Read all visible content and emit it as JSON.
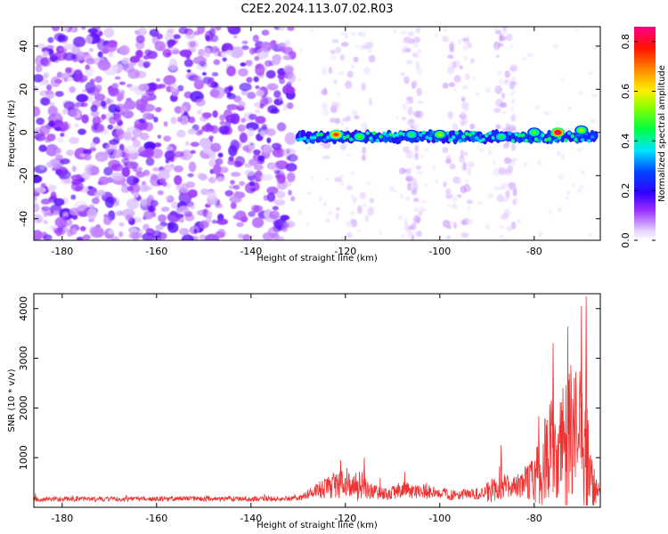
{
  "title": "C2E2.2024.113.07.02.R03",
  "chart_data": [
    {
      "type": "heatmap",
      "xlabel": "Height of straight line (km)",
      "ylabel": "Frequency (Hz)",
      "xlim": [
        -186,
        -66
      ],
      "ylim": [
        -50,
        49
      ],
      "x_ticks": [
        -180,
        -160,
        -140,
        -120,
        -100,
        -80
      ],
      "x_tick_labels": [
        "-180",
        "-160",
        "-140",
        "-120",
        "-100",
        "-80"
      ],
      "y_ticks": [
        -40,
        -20,
        0,
        20,
        40
      ],
      "y_tick_labels": [
        "-40",
        "-20",
        "0",
        "20",
        "40"
      ],
      "colorbar": {
        "label": "Normalized spectral amplitude",
        "range": [
          0,
          0.86
        ],
        "ticks": [
          0,
          0.2,
          0.4,
          0.6,
          0.8
        ],
        "tick_labels": [
          "0.0",
          "0.2",
          "0.4",
          "0.6",
          "0.8"
        ]
      },
      "features": {
        "noise_region_x": [
          -186,
          -131
        ],
        "sparse_noise_columns_x": [
          [
            -125,
            -114
          ],
          [
            -108,
            -104
          ],
          [
            -99,
            -93
          ],
          [
            -88,
            -84
          ]
        ],
        "signal_band": {
          "x": [
            -130,
            -67
          ],
          "freq_center": -2,
          "freq_half_width": 4
        },
        "signal_peaks": [
          {
            "x": -122,
            "freq": -1,
            "amplitude": 0.75
          },
          {
            "x": -117,
            "freq": -2,
            "amplitude": 0.5
          },
          {
            "x": -106,
            "freq": -1,
            "amplitude": 0.45
          },
          {
            "x": -100,
            "freq": -1,
            "amplitude": 0.55
          },
          {
            "x": -87,
            "freq": -2,
            "amplitude": 0.45
          },
          {
            "x": -80,
            "freq": 0,
            "amplitude": 0.5
          },
          {
            "x": -75,
            "freq": 0,
            "amplitude": 0.86
          },
          {
            "x": -70,
            "freq": 1,
            "amplitude": 0.55
          }
        ]
      },
      "grid": false
    },
    {
      "type": "line",
      "xlabel": "Height of straight line (km)",
      "ylabel": "SNR (10 * v/v)",
      "xlim": [
        -186,
        -66
      ],
      "ylim": [
        0,
        4300
      ],
      "x_ticks": [
        -180,
        -160,
        -140,
        -120,
        -100,
        -80
      ],
      "x_tick_labels": [
        "-180",
        "-160",
        "-140",
        "-120",
        "-100",
        "-80"
      ],
      "y_ticks": [
        1000,
        2000,
        3000,
        4000
      ],
      "y_tick_labels": [
        "1000",
        "2000",
        "3000",
        "4000"
      ],
      "line_color": "#ee3333",
      "envelope": {
        "x": [
          -186,
          -130,
          -127,
          -125,
          -123,
          -121,
          -119,
          -117,
          -115,
          -113,
          -111,
          -109,
          -107,
          -105,
          -103,
          -101,
          -99,
          -97,
          -95,
          -93,
          -91,
          -89,
          -88,
          -86,
          -84,
          -82,
          -80,
          -78,
          -76,
          -75,
          -74,
          -73,
          -72,
          -71,
          -70,
          -69,
          -68,
          -67,
          -66
        ],
        "base": [
          160,
          170,
          300,
          350,
          400,
          430,
          420,
          400,
          330,
          270,
          250,
          300,
          330,
          290,
          300,
          290,
          260,
          230,
          250,
          260,
          250,
          320,
          360,
          380,
          420,
          480,
          520,
          800,
          1200,
          1100,
          1300,
          1000,
          1200,
          1300,
          1000,
          800,
          500,
          300,
          280
        ],
        "amplitude": [
          90,
          90,
          200,
          350,
          450,
          600,
          400,
          650,
          300,
          250,
          200,
          350,
          300,
          250,
          280,
          200,
          220,
          180,
          200,
          200,
          250,
          500,
          400,
          450,
          500,
          600,
          900,
          1600,
          2200,
          1900,
          2000,
          2500,
          3000,
          2800,
          3200,
          2900,
          1200,
          500,
          350
        ]
      },
      "approx_peaks": [
        {
          "x": -121,
          "y": 950
        },
        {
          "x": -116,
          "y": 1000
        },
        {
          "x": -87,
          "y": 1250
        },
        {
          "x": -76,
          "y": 3300
        },
        {
          "x": -70,
          "y": 4050
        },
        {
          "x": -69,
          "y": 4250
        }
      ],
      "grid": false
    }
  ]
}
